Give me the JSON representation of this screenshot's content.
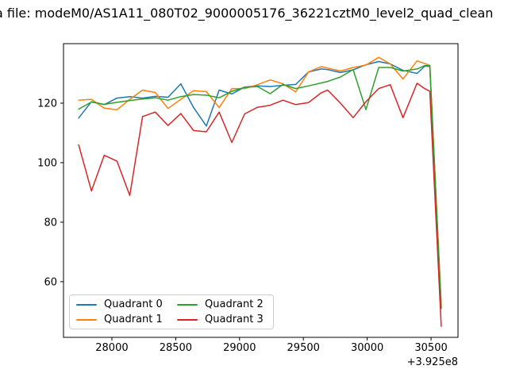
{
  "figure": {
    "background": "#ffffff",
    "title_visible": "a file: modeM0/AS1A11_080T02_9000005176_36221cztM0_level2_quad_clean"
  },
  "chart_data": {
    "type": "line",
    "title": "a file: modeM0/AS1A11_080T02_9000005176_36221cztM0_level2_quad_clean",
    "xlabel": "",
    "ylabel": "",
    "x_offset_label": "+3.925e8",
    "xlim": [
      27621,
      30711
    ],
    "ylim": [
      41.3,
      140
    ],
    "x_ticks": [
      28000,
      28500,
      29000,
      29500,
      30000,
      30500
    ],
    "y_ticks": [
      60,
      80,
      100,
      120
    ],
    "grid": false,
    "legend_position": "lower left",
    "x": [
      27740,
      27840,
      27940,
      28040,
      28140,
      28240,
      28340,
      28440,
      28540,
      28640,
      28740,
      28840,
      28940,
      29040,
      29140,
      29240,
      29340,
      29440,
      29540,
      29640,
      29690,
      29790,
      29890,
      29990,
      30090,
      30180,
      30280,
      30390,
      30450,
      30490,
      30580
    ],
    "series": [
      {
        "name": "Quadrant 0",
        "color": "#1f77b4",
        "values": [
          115.0,
          120.5,
          119.5,
          121.7,
          122.2,
          121.7,
          122.3,
          122.0,
          126.5,
          118.5,
          112.3,
          124.4,
          123.1,
          125.4,
          125.8,
          125.6,
          126.0,
          126.3,
          130.5,
          131.5,
          131.3,
          130.3,
          131.2,
          132.9,
          134.0,
          133.2,
          131.0,
          130.0,
          132.4,
          132.4,
          51.5
        ]
      },
      {
        "name": "Quadrant 1",
        "color": "#ff7f0e",
        "values": [
          121.0,
          121.3,
          118.3,
          117.8,
          121.3,
          124.4,
          123.6,
          118.2,
          121.3,
          124.2,
          123.9,
          118.5,
          124.9,
          124.9,
          126.2,
          127.8,
          126.5,
          123.8,
          130.5,
          132.3,
          131.8,
          130.8,
          132.0,
          132.8,
          135.4,
          133.2,
          128.1,
          134.2,
          133.3,
          132.7,
          52.0
        ]
      },
      {
        "name": "Quadrant 2",
        "color": "#2ca02c",
        "values": [
          118.0,
          120.4,
          119.6,
          120.3,
          120.9,
          121.4,
          121.8,
          121.0,
          122.2,
          122.9,
          122.7,
          121.8,
          124.0,
          125.3,
          125.6,
          123.2,
          126.3,
          124.9,
          125.8,
          126.8,
          127.3,
          128.8,
          131.3,
          117.8,
          132.0,
          132.0,
          130.8,
          131.5,
          132.6,
          132.6,
          51.0
        ]
      },
      {
        "name": "Quadrant 3",
        "color": "#d62728",
        "values": [
          106.0,
          90.5,
          102.5,
          100.5,
          89.0,
          115.5,
          117.0,
          112.5,
          116.5,
          110.8,
          110.4,
          117.0,
          106.8,
          116.4,
          118.6,
          119.3,
          121.0,
          119.5,
          120.2,
          123.5,
          124.4,
          120.0,
          115.1,
          120.5,
          124.9,
          126.2,
          115.1,
          126.7,
          124.9,
          124.0,
          45.0
        ]
      }
    ]
  }
}
